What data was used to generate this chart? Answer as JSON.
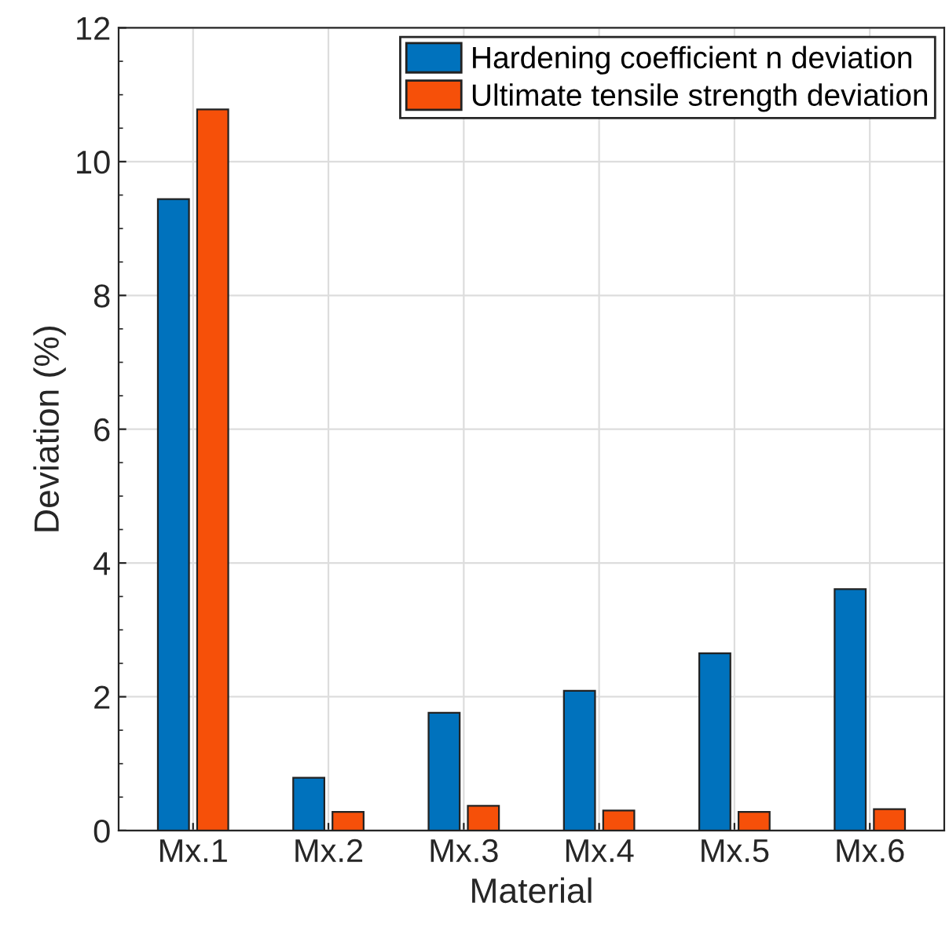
{
  "chart_data": {
    "type": "bar",
    "xlabel": "Material",
    "ylabel": "Deviation (%)",
    "categories": [
      "Mx.1",
      "Mx.2",
      "Mx.3",
      "Mx.4",
      "Mx.5",
      "Mx.6"
    ],
    "series": [
      {
        "name": "Hardening coefficient n deviation",
        "color": "#0072bd",
        "values": [
          9.44,
          0.79,
          1.76,
          2.09,
          2.65,
          3.61
        ]
      },
      {
        "name": "Ultimate tensile strength deviation",
        "color": "#f65009",
        "values": [
          10.78,
          0.28,
          0.37,
          0.3,
          0.28,
          0.32
        ]
      }
    ],
    "ylim": [
      0,
      12
    ],
    "yticks": [
      0,
      2,
      4,
      6,
      8,
      10,
      12
    ],
    "grid": true,
    "legend": "top right"
  }
}
